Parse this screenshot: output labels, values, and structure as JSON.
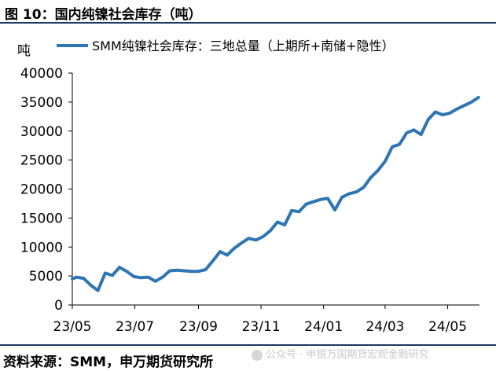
{
  "title": "图 10：国内纯镍社会库存（吨）",
  "source": "资料来源：SMM，申万期货研究所",
  "watermark": "公众号 · 申银万国期货宏观金融研究",
  "colors": {
    "series": "#2e75b6",
    "rule": "#1f3864"
  },
  "chart_data": {
    "type": "line",
    "unit_label": "吨",
    "ylim": [
      0,
      40000
    ],
    "yticks": [
      0,
      5000,
      10000,
      15000,
      20000,
      25000,
      30000,
      35000,
      40000
    ],
    "ytick_labels": [
      "0",
      "5000",
      "10000",
      "15000",
      "20000",
      "25000",
      "30000",
      "35000",
      "40000"
    ],
    "xlim": [
      "2023-05-01",
      "2024-06-01"
    ],
    "xticks": [
      "2023-05-01",
      "2023-07-01",
      "2023-09-01",
      "2023-11-01",
      "2024-01-01",
      "2024-03-01",
      "2024-05-01"
    ],
    "xtick_labels": [
      "23/05",
      "23/07",
      "23/09",
      "23/11",
      "24/01",
      "24/03",
      "24/05"
    ],
    "grid": false,
    "legend": "top",
    "series": [
      {
        "name": "SMM纯镍社会库存：三地总量（上期所+南储+隐性）",
        "x": [
          "2023-05-01",
          "2023-05-05",
          "2023-05-12",
          "2023-05-19",
          "2023-05-26",
          "2023-06-02",
          "2023-06-09",
          "2023-06-16",
          "2023-06-23",
          "2023-06-30",
          "2023-07-07",
          "2023-07-14",
          "2023-07-21",
          "2023-07-28",
          "2023-08-04",
          "2023-08-11",
          "2023-08-18",
          "2023-08-25",
          "2023-09-01",
          "2023-09-08",
          "2023-09-15",
          "2023-09-22",
          "2023-09-29",
          "2023-10-06",
          "2023-10-13",
          "2023-10-20",
          "2023-10-27",
          "2023-11-03",
          "2023-11-10",
          "2023-11-17",
          "2023-11-24",
          "2023-12-01",
          "2023-12-08",
          "2023-12-15",
          "2023-12-22",
          "2023-12-29",
          "2024-01-05",
          "2024-01-12",
          "2024-01-19",
          "2024-01-26",
          "2024-02-02",
          "2024-02-09",
          "2024-02-16",
          "2024-02-23",
          "2024-03-01",
          "2024-03-08",
          "2024-03-15",
          "2024-03-22",
          "2024-03-29",
          "2024-04-05",
          "2024-04-12",
          "2024-04-19",
          "2024-04-26",
          "2024-05-03",
          "2024-05-10",
          "2024-05-17",
          "2024-05-24",
          "2024-05-31"
        ],
        "values": [
          4500,
          4800,
          4600,
          3400,
          2500,
          5500,
          5100,
          6500,
          5800,
          4900,
          4700,
          4800,
          4100,
          4800,
          5900,
          6000,
          5900,
          5800,
          5800,
          6100,
          7600,
          9200,
          8600,
          9800,
          10700,
          11500,
          11200,
          11800,
          12800,
          14300,
          13800,
          16300,
          16100,
          17400,
          17800,
          18200,
          18400,
          16400,
          18600,
          19200,
          19500,
          20300,
          22000,
          23200,
          24800,
          27300,
          27700,
          29700,
          30200,
          29400,
          32000,
          33300,
          32800,
          33100,
          33800,
          34400,
          35000,
          35800
        ]
      }
    ]
  }
}
